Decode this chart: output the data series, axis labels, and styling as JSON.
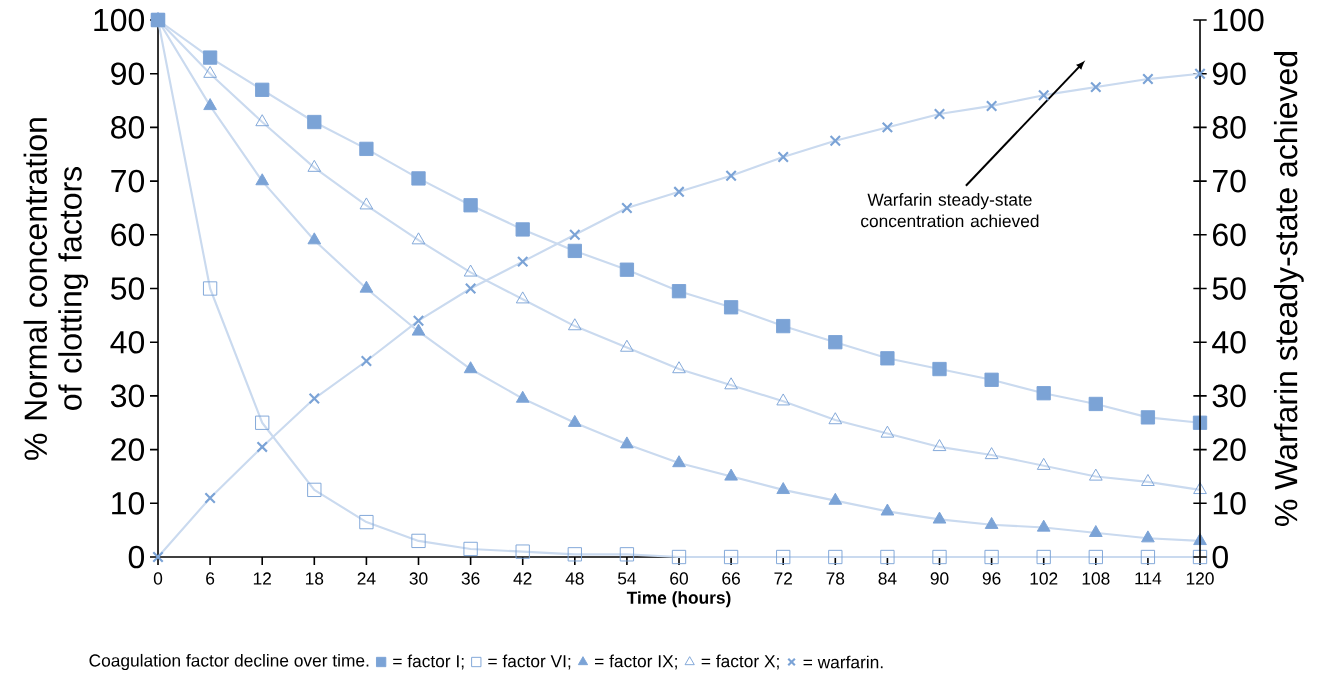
{
  "chart_data": {
    "type": "line",
    "xlabel": "Time (hours)",
    "ylabel": "% Normal concentration of clotting factors",
    "y2label": "% Warfarin steady-state achieved",
    "x": [
      0,
      6,
      12,
      18,
      24,
      30,
      36,
      42,
      48,
      54,
      60,
      66,
      72,
      78,
      84,
      90,
      96,
      102,
      108,
      114,
      120
    ],
    "xlim": [
      0,
      120
    ],
    "xticks": [
      0,
      6,
      12,
      18,
      24,
      30,
      36,
      42,
      48,
      54,
      60,
      66,
      72,
      78,
      84,
      90,
      96,
      102,
      108,
      114,
      120
    ],
    "ylim": [
      0,
      100
    ],
    "yticks": [
      0,
      10,
      20,
      30,
      40,
      50,
      60,
      70,
      80,
      90,
      100
    ],
    "y2lim": [
      0,
      100
    ],
    "y2ticks": [
      0,
      10,
      20,
      30,
      40,
      50,
      60,
      70,
      80,
      90,
      100
    ],
    "legend": "bottom",
    "grid": false,
    "series": [
      {
        "name": "= factor I;",
        "color": "#7ba3d6",
        "marker": "square",
        "values": [
          100,
          93,
          87,
          81,
          76,
          70.5,
          65.5,
          61,
          57,
          53.5,
          49.5,
          46.5,
          43,
          40,
          37,
          35,
          33,
          30.5,
          28.5,
          26,
          25
        ]
      },
      {
        "name": "= factor VI;",
        "color": "#7ba3d6",
        "marker": "square",
        "values": [
          100,
          50,
          25,
          12.5,
          6.5,
          3,
          1.5,
          1,
          0.5,
          0.5,
          0,
          0,
          0,
          0,
          0,
          0,
          0,
          0,
          0,
          0,
          0
        ]
      },
      {
        "name": "= factor IX;",
        "color": "#7ba3d6",
        "marker": "triangle",
        "values": [
          100,
          84,
          70,
          59,
          50,
          42,
          35,
          29.5,
          25,
          21,
          17.5,
          15,
          12.5,
          10.5,
          8.5,
          7,
          6,
          5.5,
          4.5,
          3.5,
          3
        ]
      },
      {
        "name": "= factor X;",
        "color": "#7ba3d6",
        "marker": "triangle",
        "values": [
          100,
          90,
          81,
          72.5,
          65.5,
          59,
          53,
          48,
          43,
          39,
          35,
          32,
          29,
          25.5,
          23,
          20.5,
          19,
          17,
          15,
          14,
          12.5
        ]
      },
      {
        "name": "= warfarin.",
        "color": "#7ba3d6",
        "marker": "cross",
        "axis": "y2",
        "values": [
          0,
          11,
          20.5,
          29.5,
          36.5,
          44,
          50,
          55,
          60,
          65,
          68,
          71,
          74.5,
          77.5,
          80,
          82.5,
          84,
          86,
          87.5,
          89,
          90
        ]
      }
    ],
    "annotations": [
      "Warfarin steady-state concentration achieved",
      "Coagulation factor decline over time."
    ]
  }
}
